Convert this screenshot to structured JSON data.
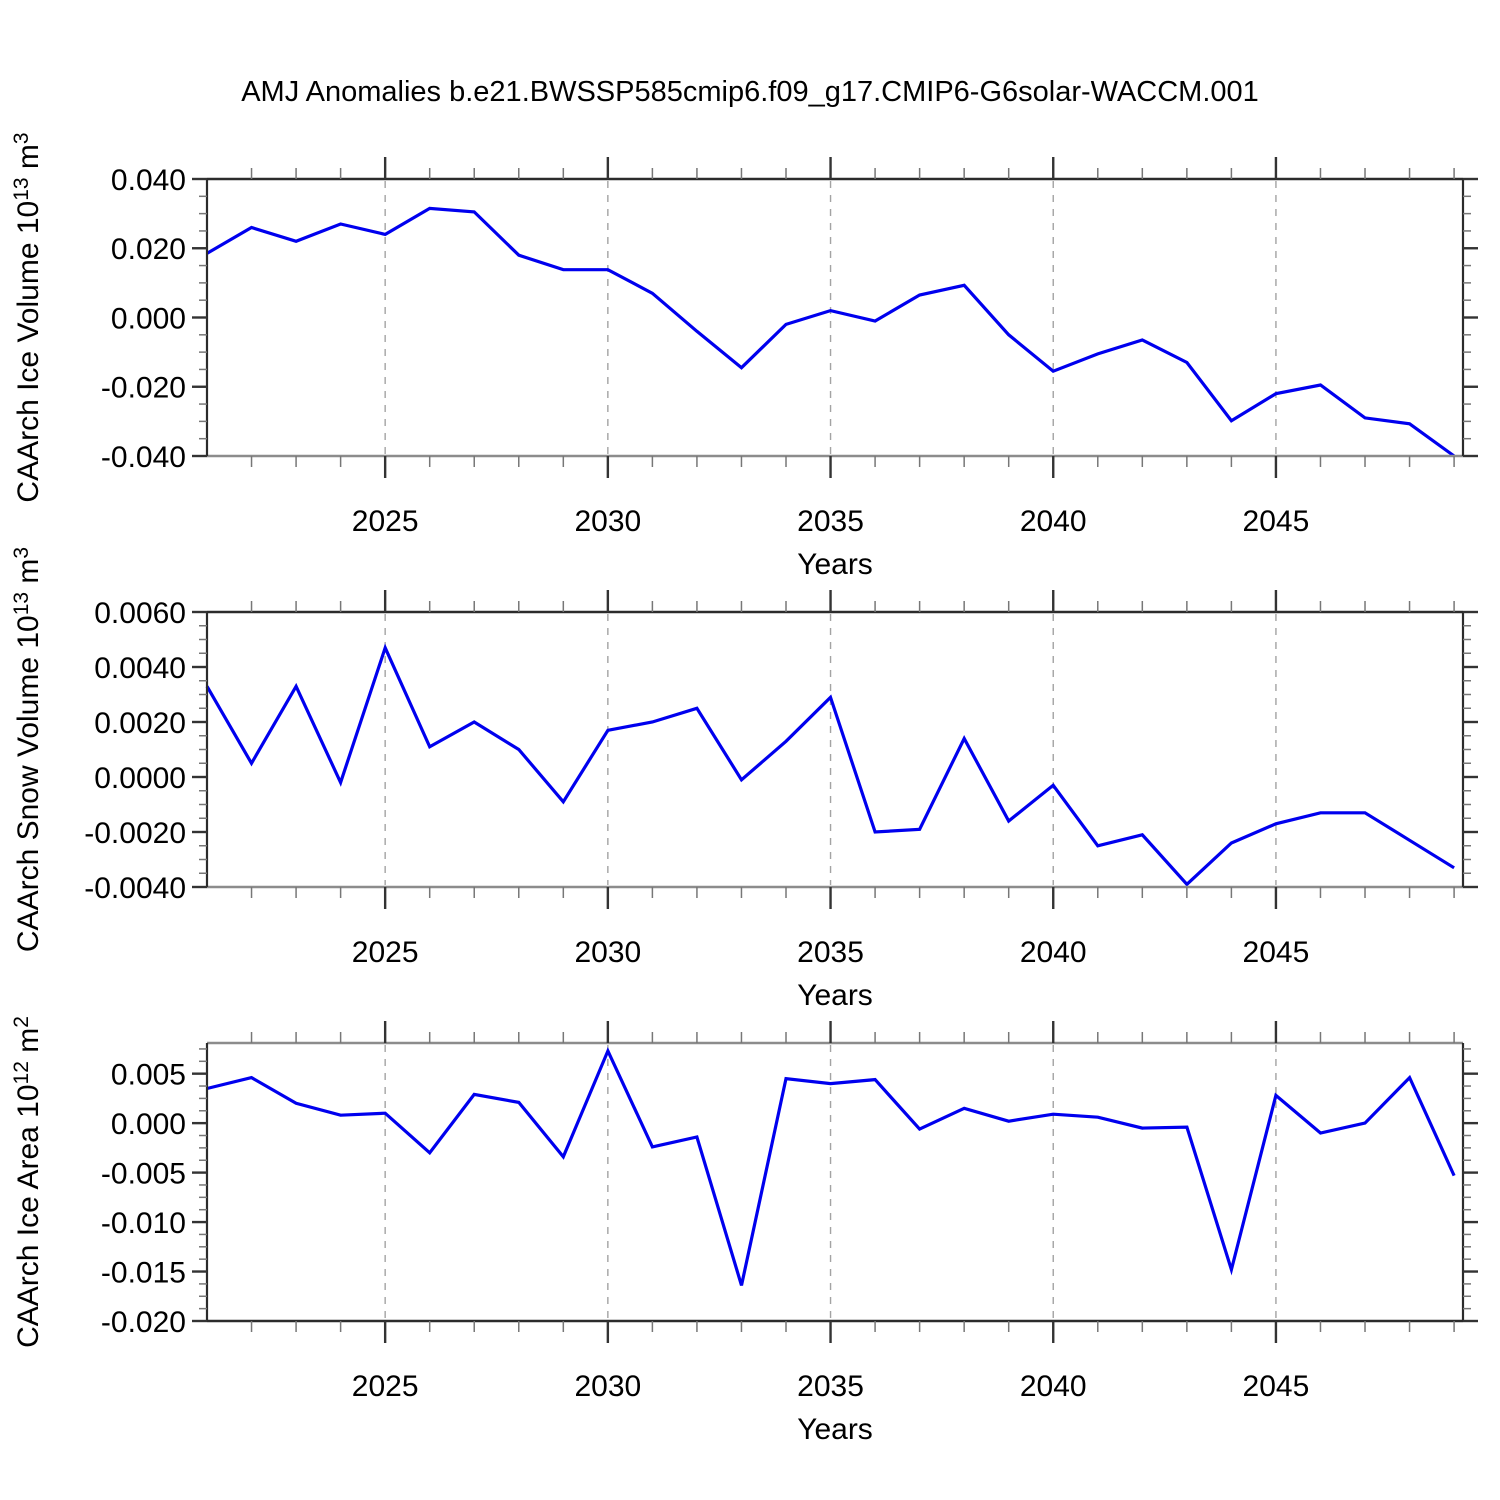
{
  "title": "AMJ Anomalies b.e21.BWSSP585cmip6.f09_g17.CMIP6-G6solar-WACCM.001",
  "colors": {
    "line": "#0000EE",
    "grid_dashed": "#A3A3A3",
    "axis": "#2B2B2B",
    "axis_soft": "#8C8C8C",
    "major_tick": "#333333",
    "minor_tick": "#777777",
    "text": "#000000"
  },
  "x_axis": {
    "label": "Years",
    "range": [
      2021,
      2049.2
    ],
    "major_ticks": [
      2025,
      2030,
      2035,
      2040,
      2045
    ],
    "major_tick_labels": [
      "2025",
      "2030",
      "2035",
      "2040",
      "2045"
    ],
    "minor_step": 1,
    "vertical_dashed_gridlines_at_major_ticks": true
  },
  "chart_data": [
    {
      "type": "line",
      "name": "caarch-ice-volume",
      "ylabel": {
        "base1": "CAArch Ice Volume 10",
        "sup1": "13",
        "base2": " m",
        "sup2": "3"
      },
      "xlabel": "Years",
      "ylim": [
        -0.04,
        0.04
      ],
      "yticks": [
        0.04,
        0.02,
        0.0,
        -0.02,
        -0.04
      ],
      "ytick_labels": [
        "0.040",
        "0.020",
        "0.000",
        "-0.020",
        "-0.040"
      ],
      "y_minor_step": 0.005,
      "x": [
        2021,
        2022,
        2023,
        2024,
        2025,
        2026,
        2027,
        2028,
        2029,
        2030,
        2031,
        2032,
        2033,
        2034,
        2035,
        2036,
        2037,
        2038,
        2039,
        2040,
        2041,
        2042,
        2043,
        2044,
        2045,
        2046,
        2047,
        2048,
        2049
      ],
      "values": [
        0.0185,
        0.026,
        0.022,
        0.027,
        0.024,
        0.0315,
        0.0305,
        0.018,
        0.0138,
        0.0138,
        0.007,
        -0.004,
        -0.0145,
        -0.002,
        0.002,
        -0.001,
        0.0065,
        0.0093,
        -0.005,
        -0.0155,
        -0.0105,
        -0.0065,
        -0.013,
        -0.0298,
        -0.022,
        -0.0195,
        -0.029,
        -0.0307,
        -0.04
      ]
    },
    {
      "type": "line",
      "name": "caarch-snow-volume",
      "ylabel": {
        "base1": "CAArch Snow Volume 10",
        "sup1": "13",
        "base2": " m",
        "sup2": "3"
      },
      "xlabel": "Years",
      "ylim": [
        -0.004,
        0.006
      ],
      "yticks": [
        0.006,
        0.004,
        0.002,
        0.0,
        -0.002,
        -0.004
      ],
      "ytick_labels": [
        "0.0060",
        "0.0040",
        "0.0020",
        "0.0000",
        "-0.0020",
        "-0.0040"
      ],
      "y_minor_step": 0.0005,
      "x": [
        2021,
        2022,
        2023,
        2024,
        2025,
        2026,
        2027,
        2028,
        2029,
        2030,
        2031,
        2032,
        2033,
        2034,
        2035,
        2036,
        2037,
        2038,
        2039,
        2040,
        2041,
        2042,
        2043,
        2044,
        2045,
        2046,
        2047,
        2048,
        2049
      ],
      "values": [
        0.0033,
        0.0005,
        0.0033,
        -0.0002,
        0.0047,
        0.0011,
        0.002,
        0.001,
        -0.0009,
        0.0017,
        0.002,
        0.0025,
        -0.0001,
        0.0013,
        0.0029,
        -0.002,
        -0.0019,
        0.0014,
        -0.0016,
        -0.0003,
        -0.0025,
        -0.0021,
        -0.0039,
        -0.0024,
        -0.0017,
        -0.0013,
        -0.0013,
        -0.0023,
        -0.0033
      ]
    },
    {
      "type": "line",
      "name": "caarch-ice-area",
      "ylabel": {
        "base1": "CAArch Ice Area 10",
        "sup1": "12",
        "base2": " m",
        "sup2": "2"
      },
      "xlabel": "Years",
      "ylim": [
        -0.02,
        0.0081
      ],
      "yticks": [
        0.005,
        0.0,
        -0.005,
        -0.01,
        -0.015,
        -0.02
      ],
      "ytick_labels": [
        "0.005",
        "0.000",
        "-0.005",
        "-0.010",
        "-0.015",
        "-0.020"
      ],
      "y_minor_step": 0.00125,
      "x": [
        2021,
        2022,
        2023,
        2024,
        2025,
        2026,
        2027,
        2028,
        2029,
        2030,
        2031,
        2032,
        2033,
        2034,
        2035,
        2036,
        2037,
        2038,
        2039,
        2040,
        2041,
        2042,
        2043,
        2044,
        2045,
        2046,
        2047,
        2048,
        2049
      ],
      "values": [
        0.0035,
        0.0046,
        0.002,
        0.0008,
        0.001,
        -0.003,
        0.0029,
        0.0021,
        -0.0034,
        0.0073,
        -0.0024,
        -0.0014,
        -0.0164,
        0.0045,
        0.004,
        0.0044,
        -0.0006,
        0.0015,
        0.0002,
        0.0009,
        0.0006,
        -0.0005,
        -0.0004,
        -0.0148,
        0.0028,
        -0.001,
        0.0,
        0.0046,
        -0.0053
      ]
    }
  ]
}
